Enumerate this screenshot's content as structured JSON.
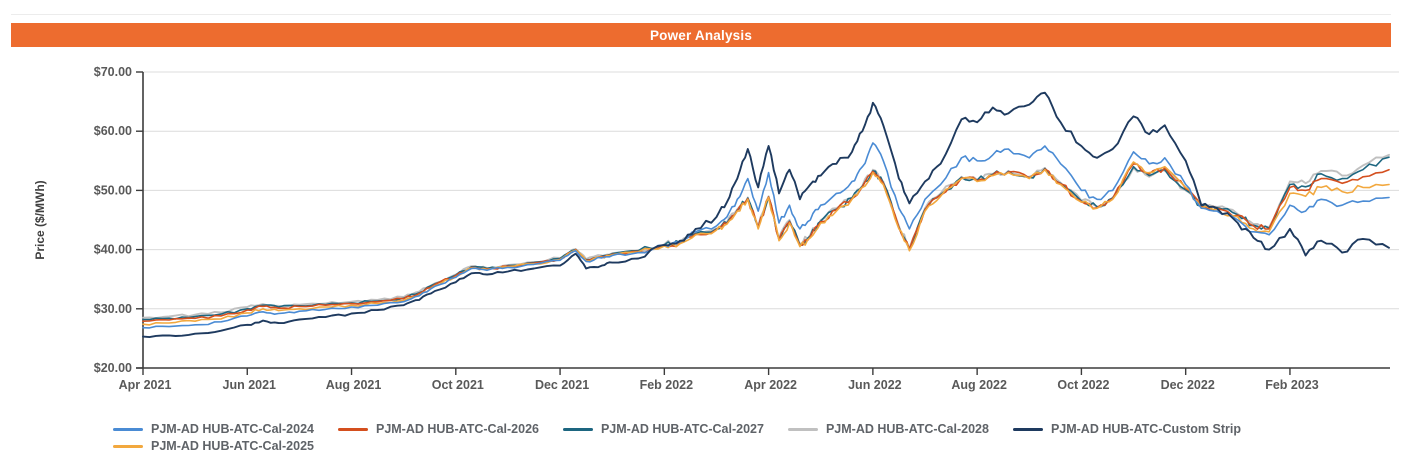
{
  "header": {
    "title": "Power Analysis",
    "bg_color": "#ED6C2F",
    "text_color": "#FFFFFF"
  },
  "chart_data": {
    "type": "line",
    "title": "Power Analysis",
    "xlabel": "",
    "ylabel": "Price ($/MWh)",
    "ylim": [
      20,
      70
    ],
    "grid": "horizontal",
    "legend_position": "bottom",
    "y_tick_values": [
      70,
      60,
      50,
      40,
      30,
      20
    ],
    "y_tick_labels": [
      "$70.00",
      "$60.00",
      "$50.00",
      "$40.00",
      "$30.00",
      "$20.00"
    ],
    "x_tick_values": [
      0,
      2,
      4,
      6,
      8,
      10,
      12,
      14,
      16,
      18,
      20,
      22
    ],
    "x_tick_labels": [
      "Apr 2021",
      "Jun 2021",
      "Aug 2021",
      "Oct 2021",
      "Dec 2021",
      "Feb 2022",
      "Apr 2022",
      "Jun 2022",
      "Aug 2022",
      "Oct 2022",
      "Dec 2022",
      "Feb 2023"
    ],
    "x_unit": "months since Apr 2021",
    "x": [
      0,
      0.5,
      1,
      1.5,
      2,
      2.3,
      2.6,
      3,
      3.5,
      4,
      4.5,
      5,
      5.3,
      5.6,
      6,
      6.3,
      6.6,
      7,
      7.5,
      8,
      8.3,
      8.5,
      8.8,
      9,
      9.5,
      10,
      10.3,
      10.6,
      11,
      11.2,
      11.4,
      11.6,
      11.8,
      12,
      12.2,
      12.4,
      12.6,
      12.8,
      13,
      13.3,
      13.6,
      13.8,
      14,
      14.2,
      14.5,
      14.7,
      15,
      15.3,
      15.7,
      16,
      16.3,
      16.6,
      17,
      17.3,
      17.6,
      18,
      18.3,
      18.6,
      19,
      19.3,
      19.6,
      20,
      20.3,
      20.6,
      21,
      21.3,
      21.6,
      22,
      22.3,
      22.6,
      23,
      23.4,
      23.9
    ],
    "series": [
      {
        "name": "PJM-AD HUB-ATC-Cal-2024",
        "color": "#4A8BD4",
        "values": [
          26.8,
          27.0,
          27.3,
          27.8,
          28.8,
          29.5,
          29.2,
          29.6,
          29.9,
          30.3,
          30.6,
          31.2,
          32.2,
          33.8,
          35.3,
          36.8,
          36.5,
          37.0,
          37.5,
          38.2,
          39.8,
          38.0,
          38.6,
          39.0,
          39.5,
          40.8,
          41.3,
          43.0,
          44.0,
          45.5,
          48.5,
          52.0,
          46.5,
          53.0,
          44.5,
          47.5,
          43.5,
          45.0,
          47.5,
          49.5,
          51.5,
          54.0,
          58.0,
          55.0,
          47.0,
          43.5,
          48.5,
          51.0,
          55.5,
          55.0,
          56.0,
          57.0,
          55.5,
          57.5,
          54.5,
          50.0,
          48.5,
          50.0,
          56.5,
          54.5,
          55.5,
          51.0,
          47.0,
          46.5,
          45.0,
          43.0,
          42.5,
          47.5,
          46.5,
          48.5,
          47.5,
          48.2,
          48.8
        ]
      },
      {
        "name": "PJM-AD HUB-ATC-Cal-2025",
        "color": "#F2A83E",
        "values": [
          27.4,
          27.6,
          27.9,
          28.3,
          29.3,
          30.0,
          29.7,
          30.0,
          30.3,
          30.6,
          30.9,
          31.4,
          32.3,
          33.9,
          35.4,
          36.9,
          36.6,
          37.1,
          37.6,
          38.3,
          39.9,
          38.1,
          38.7,
          39.1,
          39.6,
          40.6,
          41.0,
          42.5,
          43.3,
          44.3,
          46.5,
          48.5,
          43.5,
          48.8,
          41.5,
          44.5,
          40.5,
          42.0,
          44.5,
          46.5,
          48.5,
          50.5,
          53.0,
          51.0,
          43.5,
          39.8,
          46.5,
          49.0,
          52.0,
          51.5,
          52.5,
          53.0,
          52.0,
          53.5,
          51.0,
          48.0,
          47.0,
          48.5,
          54.8,
          53.0,
          54.0,
          50.5,
          47.0,
          46.8,
          45.5,
          43.5,
          43.0,
          49.5,
          49.0,
          50.5,
          49.8,
          50.5,
          51.0
        ]
      },
      {
        "name": "PJM-AD HUB-ATC-Cal-2026",
        "color": "#D44F1E",
        "values": [
          27.9,
          28.1,
          28.4,
          28.8,
          29.8,
          30.4,
          30.1,
          30.4,
          30.6,
          30.9,
          31.2,
          31.7,
          32.6,
          34.1,
          35.6,
          37.0,
          36.7,
          37.2,
          37.7,
          38.4,
          40.0,
          38.2,
          38.8,
          39.2,
          39.7,
          40.7,
          41.1,
          42.6,
          43.4,
          44.4,
          46.6,
          48.6,
          43.7,
          48.9,
          41.7,
          44.7,
          40.7,
          42.2,
          44.7,
          46.7,
          48.6,
          50.6,
          53.2,
          51.2,
          43.7,
          40.0,
          46.7,
          49.2,
          52.1,
          51.6,
          52.6,
          53.1,
          52.1,
          53.6,
          51.1,
          48.1,
          47.1,
          48.6,
          54.5,
          52.8,
          53.8,
          50.3,
          47.2,
          47.0,
          45.8,
          44.0,
          43.5,
          50.5,
          50.0,
          52.0,
          51.2,
          52.3,
          53.5
        ]
      },
      {
        "name": "PJM-AD HUB-ATC-Cal-2027",
        "color": "#1D6680",
        "values": [
          28.2,
          28.4,
          28.7,
          29.1,
          30.0,
          30.6,
          30.3,
          30.5,
          30.7,
          31.0,
          31.3,
          31.8,
          32.7,
          34.2,
          35.7,
          37.1,
          36.8,
          37.3,
          37.8,
          38.5,
          40.0,
          38.3,
          38.9,
          39.3,
          39.8,
          40.8,
          41.2,
          42.7,
          43.5,
          44.5,
          46.7,
          48.7,
          43.8,
          48.9,
          41.8,
          44.8,
          40.8,
          42.3,
          44.8,
          46.8,
          48.7,
          50.7,
          53.3,
          51.3,
          43.8,
          40.1,
          46.8,
          49.3,
          52.2,
          51.7,
          52.7,
          53.2,
          52.2,
          53.7,
          51.2,
          48.2,
          47.2,
          48.7,
          54.0,
          52.5,
          53.5,
          50.1,
          47.3,
          47.1,
          45.9,
          44.1,
          43.6,
          51.0,
          50.6,
          52.8,
          52.0,
          53.5,
          55.6
        ]
      },
      {
        "name": "PJM-AD HUB-ATC-Cal-2028",
        "color": "#C0C0C0",
        "values": [
          28.5,
          28.7,
          29.0,
          29.4,
          30.3,
          30.8,
          30.5,
          30.7,
          30.9,
          31.2,
          31.5,
          32.0,
          32.9,
          34.3,
          35.8,
          37.2,
          36.9,
          37.4,
          37.9,
          38.6,
          40.1,
          38.4,
          39.0,
          39.4,
          39.9,
          40.9,
          41.3,
          42.8,
          43.6,
          44.6,
          46.8,
          48.8,
          44.0,
          49.0,
          42.0,
          45.0,
          41.0,
          42.5,
          45.0,
          47.0,
          48.8,
          50.8,
          53.5,
          51.5,
          44.0,
          40.3,
          47.0,
          49.5,
          52.3,
          51.8,
          52.8,
          53.3,
          52.3,
          53.8,
          51.3,
          48.3,
          47.3,
          48.8,
          53.8,
          52.3,
          53.3,
          50.0,
          47.4,
          47.2,
          46.0,
          44.3,
          43.8,
          51.5,
          51.2,
          53.3,
          52.5,
          54.2,
          56.0
        ]
      },
      {
        "name": "PJM-AD HUB-ATC-Custom Strip",
        "color": "#1E3A5F",
        "values": [
          25.3,
          25.5,
          25.8,
          26.3,
          27.3,
          28.0,
          27.6,
          28.2,
          28.6,
          29.2,
          29.8,
          30.6,
          31.5,
          33.0,
          34.5,
          36.0,
          35.8,
          36.3,
          36.8,
          37.3,
          39.3,
          36.8,
          37.3,
          37.8,
          38.5,
          40.8,
          41.5,
          43.5,
          45.5,
          48.0,
          52.0,
          57.0,
          50.5,
          57.5,
          49.5,
          53.5,
          48.5,
          51.0,
          52.5,
          54.5,
          56.5,
          60.0,
          64.8,
          61.0,
          52.0,
          47.8,
          51.5,
          54.5,
          62.0,
          61.5,
          64.0,
          63.0,
          64.5,
          66.5,
          61.5,
          57.5,
          55.5,
          57.0,
          62.5,
          59.5,
          61.0,
          55.0,
          47.5,
          47.0,
          44.5,
          42.0,
          40.0,
          43.5,
          39.0,
          41.5,
          39.5,
          41.8,
          40.3
        ]
      }
    ],
    "legend_rows": [
      [
        0,
        2,
        3,
        4,
        5
      ],
      [
        1
      ]
    ],
    "colors": {
      "grid": "#DCDCDC",
      "axis": "#3C3C3C",
      "tick_label": "#595959"
    }
  }
}
